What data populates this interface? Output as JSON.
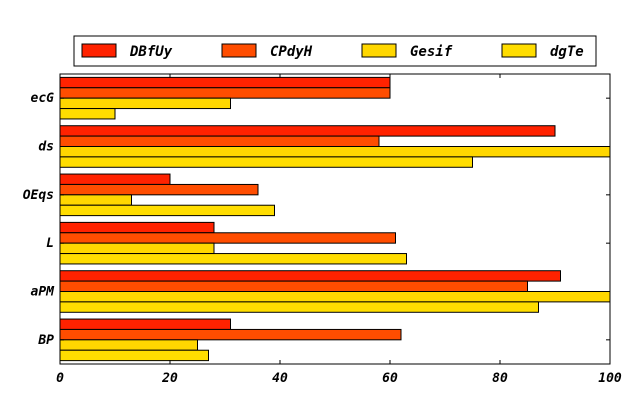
{
  "chart_data": {
    "type": "bar",
    "orientation": "horizontal",
    "categories": [
      "ecG",
      "ds",
      "OEqs",
      "L",
      "aPM",
      "BP"
    ],
    "series": [
      {
        "name": "DBfUy",
        "color": "#ff2200",
        "values": [
          60,
          90,
          20,
          28,
          91,
          31
        ]
      },
      {
        "name": "CPdyH",
        "color": "#ff4d00",
        "values": [
          60,
          58,
          36,
          61,
          85,
          62
        ]
      },
      {
        "name": "Gesif",
        "color": "#ffd700",
        "values": [
          31,
          100,
          13,
          28,
          100,
          25
        ]
      },
      {
        "name": "dgTe",
        "color": "#ffdd00",
        "values": [
          10,
          75,
          39,
          63,
          87,
          27
        ]
      }
    ],
    "xlim": [
      0,
      100
    ],
    "xticks": [
      "0",
      "20",
      "40",
      "60",
      "80",
      "100"
    ],
    "title": "",
    "xlabel": "",
    "ylabel": "",
    "grid": false,
    "legend": "top"
  }
}
